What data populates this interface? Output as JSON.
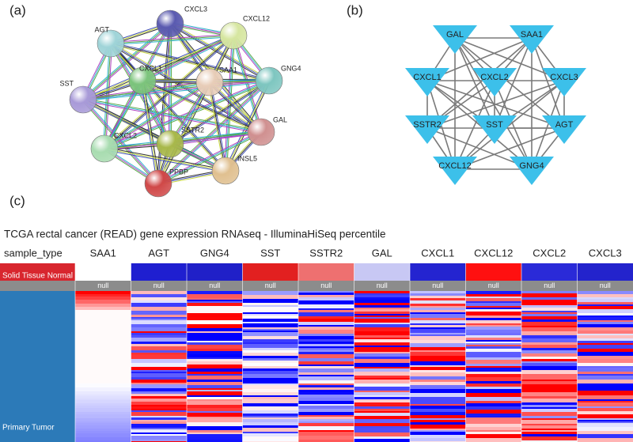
{
  "panel_a": {
    "label": "(a)",
    "nodes": [
      "CXCL3",
      "AGT",
      "CXCL12",
      "GNG4",
      "SST",
      "CXCL1",
      "SAA1",
      "SSTR2",
      "GAL",
      "CXCL2",
      "INSL5",
      "PPBP"
    ]
  },
  "panel_b": {
    "label": "(b)",
    "nodes": [
      "GAL",
      "SAA1",
      "CXCL1",
      "CXCL2",
      "CXCL3",
      "SSTR2",
      "SST",
      "AGT",
      "CXCL12",
      "GNG4"
    ]
  },
  "panel_c": {
    "label": "(c)",
    "title": "TCGA rectal cancer (READ) gene expression RNAseq - IlluminaHiSeq percentile",
    "header": "sample_type",
    "columns": [
      "SAA1",
      "AGT",
      "GNG4",
      "SST",
      "SSTR2",
      "GAL",
      "CXCL1",
      "CXCL12",
      "CXCL2",
      "CXCL3"
    ],
    "sample_types": [
      "Solid Tissue Normal",
      "Primary Tumor"
    ],
    "null_row": [
      "null",
      "null",
      "null",
      "null",
      "null",
      "null",
      "null",
      "null",
      "null",
      "null"
    ]
  }
}
